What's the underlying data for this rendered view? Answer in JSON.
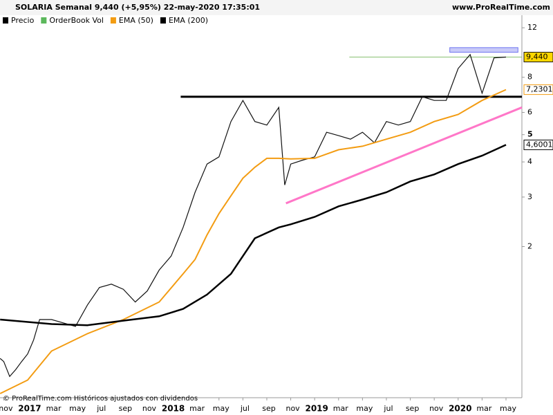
{
  "header": {
    "title": "SOLARIA Semanal 9,440 (+5,95%) 22-may-2020 17:35:01",
    "site": "www.ProRealTime.com"
  },
  "legend": [
    "Precio",
    "OrderBook Vol",
    "EMA (50)",
    "EMA (200)"
  ],
  "footer": "© ProRealTime.com Históricos ajustados con dividendos",
  "chart_data": {
    "type": "line",
    "log_scale": true,
    "xlim": [
      -2.31,
      41.33
    ],
    "ylim": [
      0.58,
      13.3
    ],
    "yticks": [
      12,
      8,
      6,
      5,
      4,
      3,
      2
    ],
    "xticks": [
      {
        "value": -2,
        "label": "nov"
      },
      {
        "value": 0,
        "label": "2017"
      },
      {
        "value": 2,
        "label": "mar"
      },
      {
        "value": 4,
        "label": "may"
      },
      {
        "value": 6,
        "label": "jul"
      },
      {
        "value": 8,
        "label": "sep"
      },
      {
        "value": 10,
        "label": "nov"
      },
      {
        "value": 12,
        "label": "2018"
      },
      {
        "value": 14,
        "label": "mar"
      },
      {
        "value": 16,
        "label": "may"
      },
      {
        "value": 18,
        "label": "jul"
      },
      {
        "value": 20,
        "label": "sep"
      },
      {
        "value": 22,
        "label": "nov"
      },
      {
        "value": 24,
        "label": "2019"
      },
      {
        "value": 26,
        "label": "mar"
      },
      {
        "value": 28,
        "label": "may"
      },
      {
        "value": 30,
        "label": "jul"
      },
      {
        "value": 32,
        "label": "sep"
      },
      {
        "value": 34,
        "label": "nov"
      },
      {
        "value": 36,
        "label": "2020"
      },
      {
        "value": 38,
        "label": "mar"
      },
      {
        "value": 40,
        "label": "may"
      }
    ],
    "series": [
      {
        "name": "Precio",
        "color": "#111111",
        "width": 1.2,
        "x": [
          -2.3,
          -2,
          -1.5,
          -1,
          -0.5,
          0,
          0.5,
          1,
          2,
          3,
          4,
          5,
          6,
          7,
          8,
          9,
          10,
          11,
          12,
          13,
          14,
          15,
          16,
          17,
          18,
          19,
          20,
          21,
          21.5,
          22,
          23,
          24,
          25,
          26,
          27,
          28,
          29,
          30,
          31,
          32,
          33,
          34,
          35,
          36,
          37,
          38,
          39,
          40
        ],
        "values": [
          0.8,
          0.78,
          0.69,
          0.73,
          0.78,
          0.83,
          0.93,
          1.1,
          1.1,
          1.07,
          1.04,
          1.24,
          1.43,
          1.47,
          1.41,
          1.27,
          1.39,
          1.65,
          1.85,
          2.34,
          3.12,
          3.93,
          4.17,
          5.57,
          6.62,
          5.57,
          5.41,
          6.25,
          3.31,
          3.93,
          4.06,
          4.17,
          5.1,
          4.96,
          4.82,
          5.1,
          4.68,
          5.57,
          5.41,
          5.57,
          6.82,
          6.62,
          6.62,
          8.6,
          9.64,
          7.02,
          9.38,
          9.44
        ],
        "last_label": "9,440",
        "label_bg": "#ffd700"
      },
      {
        "name": "EMA (50)",
        "color": "#f39c12",
        "width": 2,
        "x": [
          -2.3,
          0,
          2,
          5,
          8,
          11,
          13,
          14,
          15,
          16,
          17,
          18,
          19,
          20,
          21,
          22,
          24,
          26,
          28,
          30,
          32,
          34,
          36,
          38,
          40
        ],
        "values": [
          0.6,
          0.67,
          0.85,
          0.98,
          1.1,
          1.27,
          1.6,
          1.8,
          2.2,
          2.62,
          3.03,
          3.5,
          3.83,
          4.12,
          4.12,
          4.1,
          4.12,
          4.42,
          4.55,
          4.82,
          5.1,
          5.57,
          5.9,
          6.62,
          7.23
        ],
        "last_label": "7,2301",
        "label_bg": "#ffffff"
      },
      {
        "name": "EMA (200)",
        "color": "#000000",
        "width": 2.5,
        "x": [
          -2.3,
          2,
          5,
          8,
          11,
          13,
          15,
          17,
          18,
          19,
          21,
          22,
          24,
          26,
          28,
          30,
          32,
          34,
          36,
          38,
          40
        ],
        "values": [
          1.1,
          1.06,
          1.05,
          1.09,
          1.13,
          1.2,
          1.35,
          1.6,
          1.85,
          2.14,
          2.34,
          2.4,
          2.55,
          2.78,
          2.94,
          3.12,
          3.41,
          3.61,
          3.93,
          4.21,
          4.6
        ],
        "last_label": "4,6001",
        "label_bg": "#ffffff"
      }
    ],
    "drawings": [
      {
        "kind": "line",
        "color": "#000000",
        "width": 3,
        "x": [
          12.8,
          41.33
        ],
        "values": [
          6.82,
          6.82
        ]
      },
      {
        "kind": "line",
        "color": "#ff77c8",
        "width": 3,
        "x": [
          21.6,
          41.33
        ],
        "values": [
          2.85,
          6.25
        ]
      },
      {
        "kind": "line",
        "color": "#88c070",
        "width": 1,
        "x": [
          26.9,
          41.33
        ],
        "values": [
          9.44,
          9.44
        ]
      },
      {
        "kind": "rect",
        "color": "#6f75f0",
        "fill": "#c8caf8",
        "x": [
          35.3,
          41.0
        ],
        "values": [
          9.82,
          10.2
        ]
      }
    ]
  }
}
